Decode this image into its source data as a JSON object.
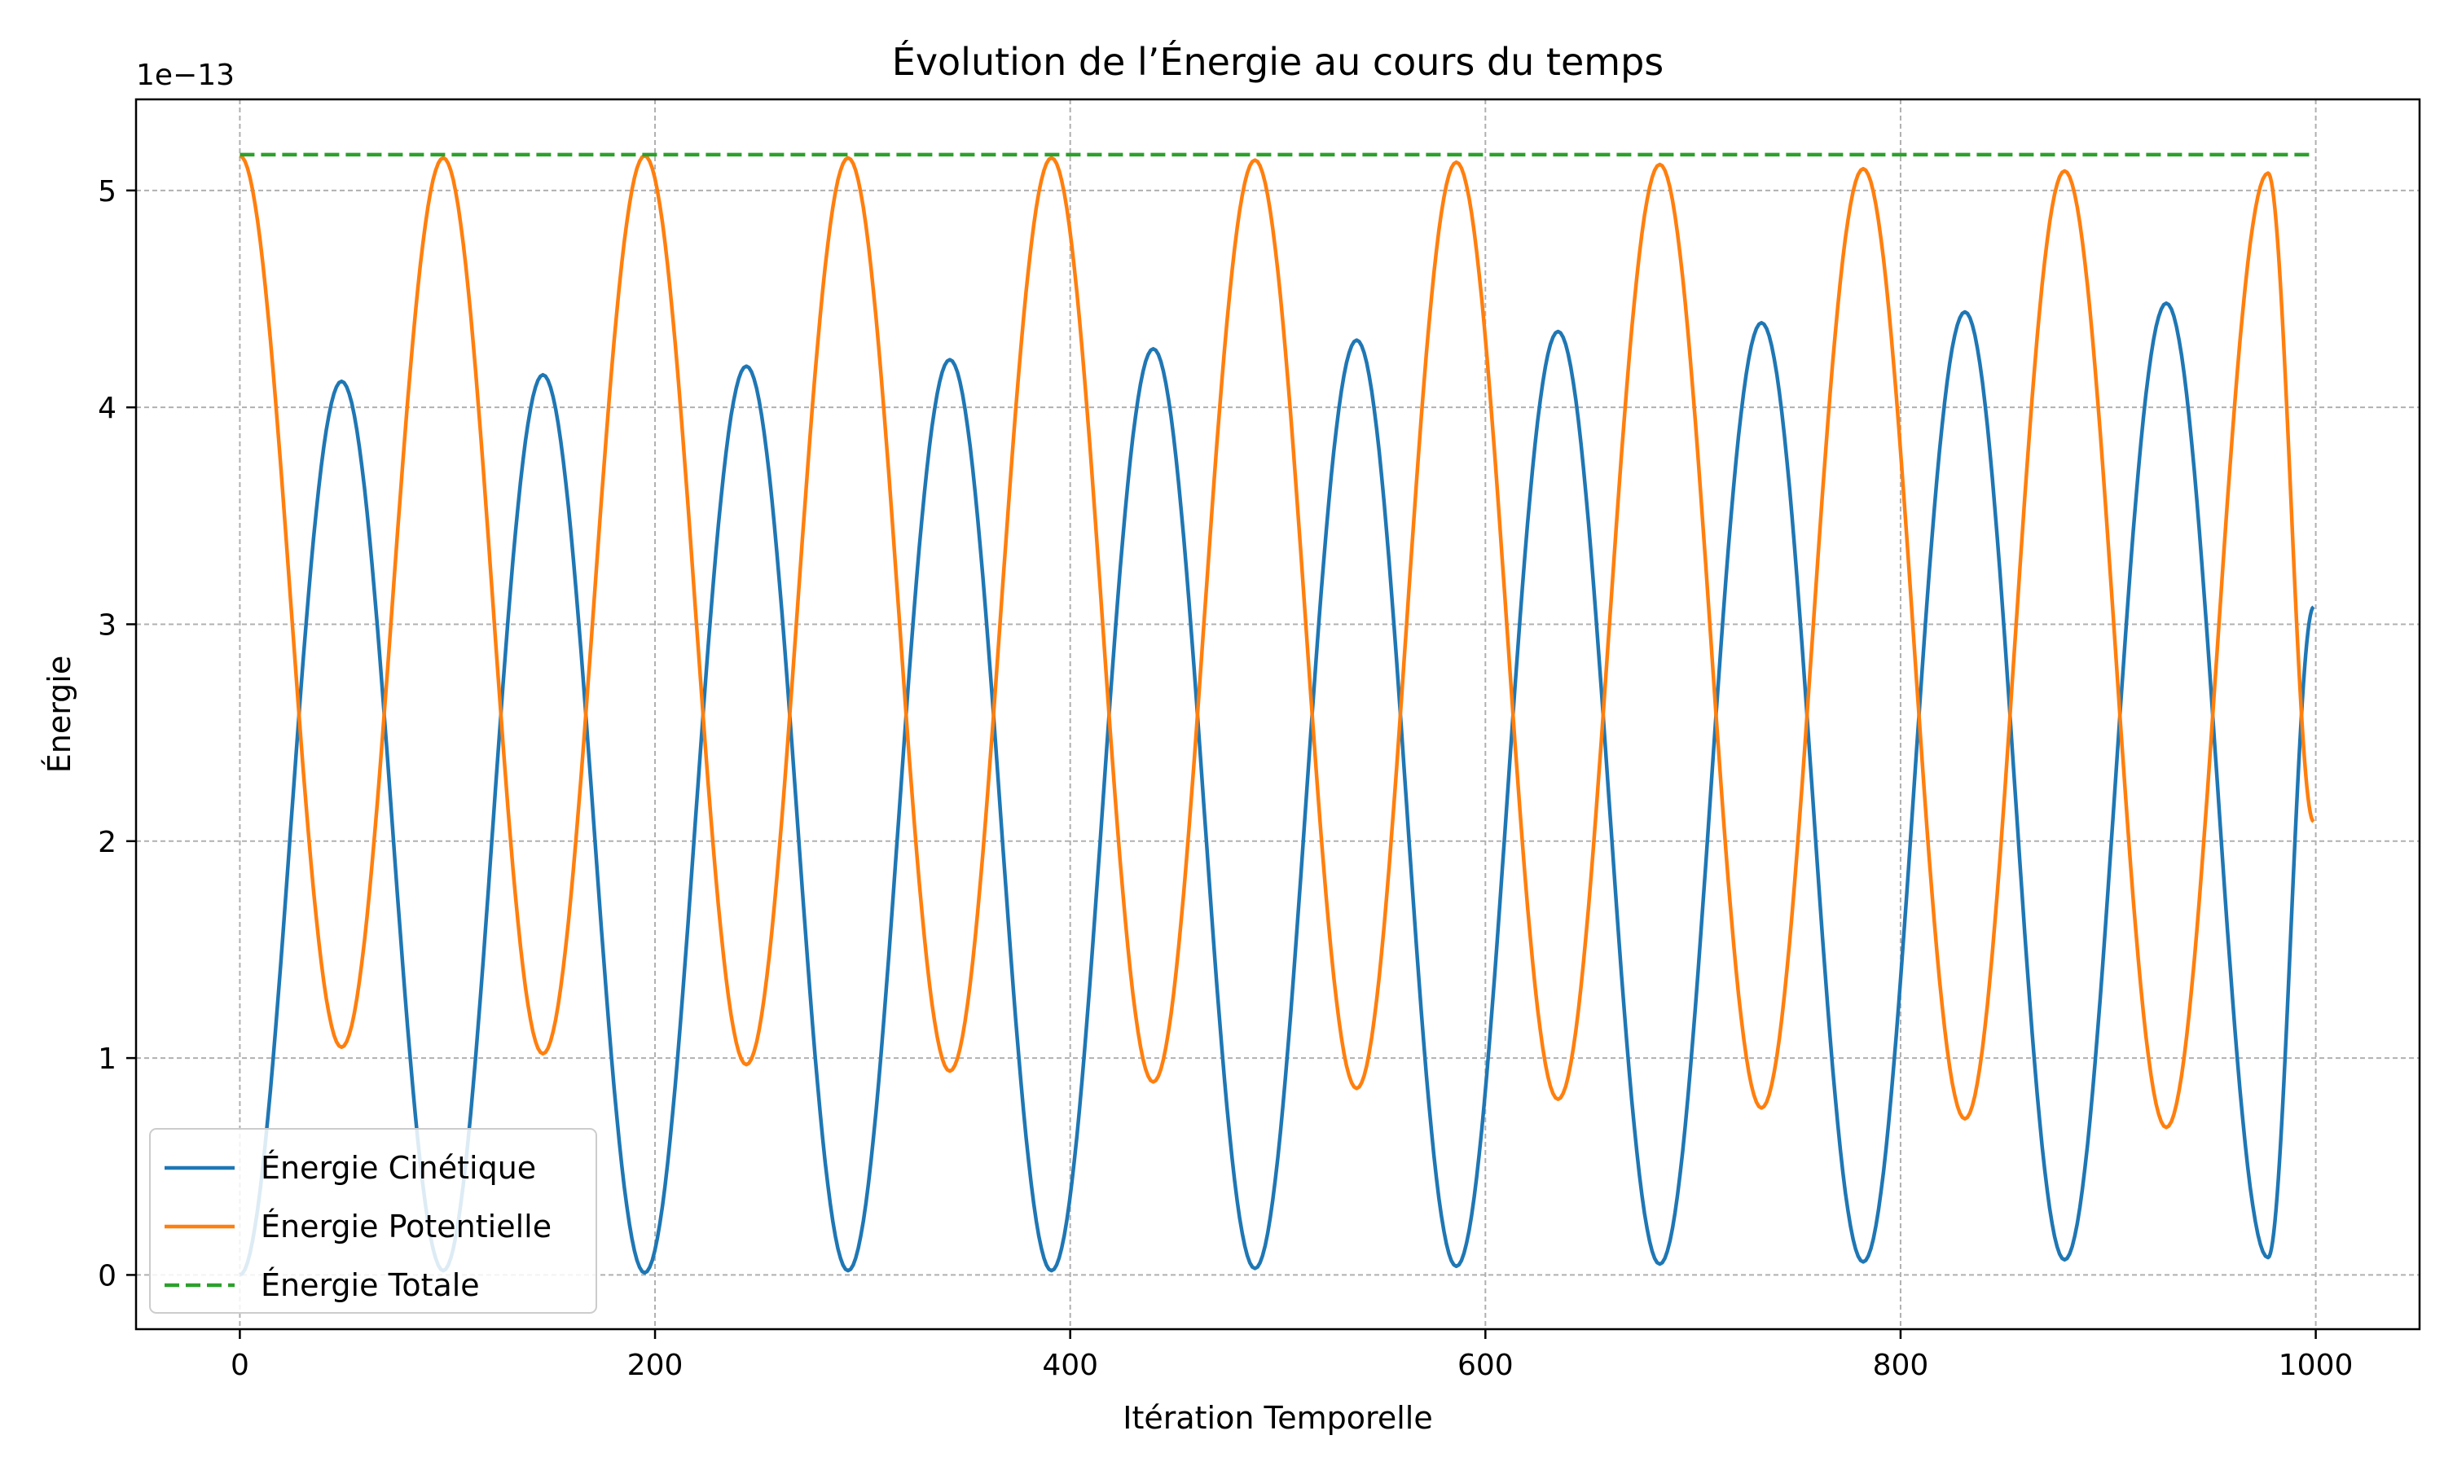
{
  "chart_data": {
    "type": "line",
    "title": "Évolution de l’Énergie au cours du temps",
    "xlabel": "Itération Temporelle",
    "ylabel": "Énergie",
    "y_offset_text": "1e−13",
    "y_scale_factor": 1e-13,
    "xlim": [
      -50,
      1050
    ],
    "ylim": [
      -0.25,
      5.42
    ],
    "x_ticks": [
      0,
      200,
      400,
      600,
      800,
      1000
    ],
    "x_tick_labels": [
      "0",
      "200",
      "400",
      "600",
      "800",
      "1000"
    ],
    "y_ticks": [
      0,
      1,
      2,
      3,
      4,
      5
    ],
    "y_tick_labels": [
      "0",
      "1",
      "2",
      "3",
      "4",
      "5"
    ],
    "grid": true,
    "legend_position": "lower-left",
    "series": [
      {
        "name": "Énergie Cinétique",
        "color": "#1f77b4",
        "style": "solid",
        "x": [
          0,
          49,
          98,
          146,
          195,
          244,
          293,
          342,
          391,
          440,
          489,
          538,
          586,
          635,
          684,
          733,
          782,
          831,
          879,
          928,
          977,
          999
        ],
        "y": [
          0.0,
          4.12,
          0.02,
          4.15,
          0.01,
          4.19,
          0.02,
          4.22,
          0.02,
          4.27,
          0.03,
          4.31,
          0.04,
          4.35,
          0.05,
          4.39,
          0.06,
          4.44,
          0.07,
          4.48,
          0.08,
          3.08
        ]
      },
      {
        "name": "Énergie Potentielle",
        "color": "#ff7f0e",
        "style": "solid",
        "x": [
          0,
          49,
          98,
          146,
          195,
          244,
          293,
          342,
          391,
          440,
          489,
          538,
          586,
          635,
          684,
          733,
          782,
          831,
          879,
          928,
          977,
          999
        ],
        "y": [
          5.16,
          1.05,
          5.15,
          1.02,
          5.16,
          0.97,
          5.15,
          0.94,
          5.15,
          0.89,
          5.14,
          0.86,
          5.13,
          0.81,
          5.12,
          0.77,
          5.1,
          0.72,
          5.09,
          0.68,
          5.08,
          2.09
        ]
      },
      {
        "name": "Énergie Totale",
        "color": "#2ca02c",
        "style": "dashed",
        "x": [
          0,
          999
        ],
        "y": [
          5.165,
          5.165
        ]
      }
    ]
  }
}
